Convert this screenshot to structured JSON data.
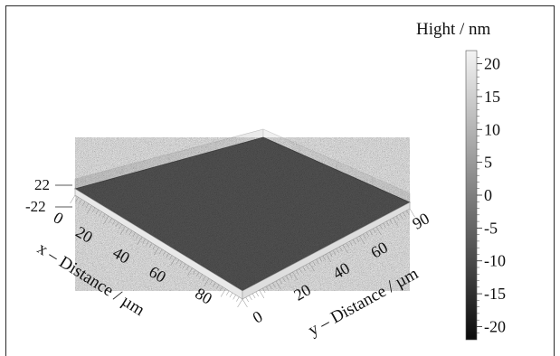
{
  "chart_data": {
    "type": "heatmap",
    "title": "",
    "colorbar": {
      "label": "Hight / nm",
      "range": [
        -22,
        22
      ],
      "ticks": [
        "20",
        "15",
        "10",
        "5",
        "0",
        "-5",
        "-10",
        "-15",
        "-20"
      ],
      "tick_values": [
        20,
        15,
        10,
        5,
        0,
        -5,
        -10,
        -15,
        -20
      ]
    },
    "x_axis": {
      "label": "x – Distance / µm",
      "ticks": [
        "0",
        "20",
        "40",
        "60",
        "80"
      ],
      "tick_values": [
        0,
        20,
        40,
        60,
        80
      ],
      "range": [
        0,
        100
      ]
    },
    "y_axis": {
      "label": "y – Distance / µm",
      "ticks": [
        "0",
        "20",
        "40",
        "60",
        "90"
      ],
      "tick_values": [
        0,
        20,
        40,
        60,
        90
      ],
      "range": [
        0,
        100
      ]
    },
    "z_axis": {
      "ticks": [
        "22",
        "-22"
      ],
      "tick_values": [
        22,
        -22
      ],
      "range": [
        -22,
        22
      ]
    },
    "surface": {
      "description_type": "3d-surface-topography",
      "base_color": "#5a5a5a"
    }
  }
}
